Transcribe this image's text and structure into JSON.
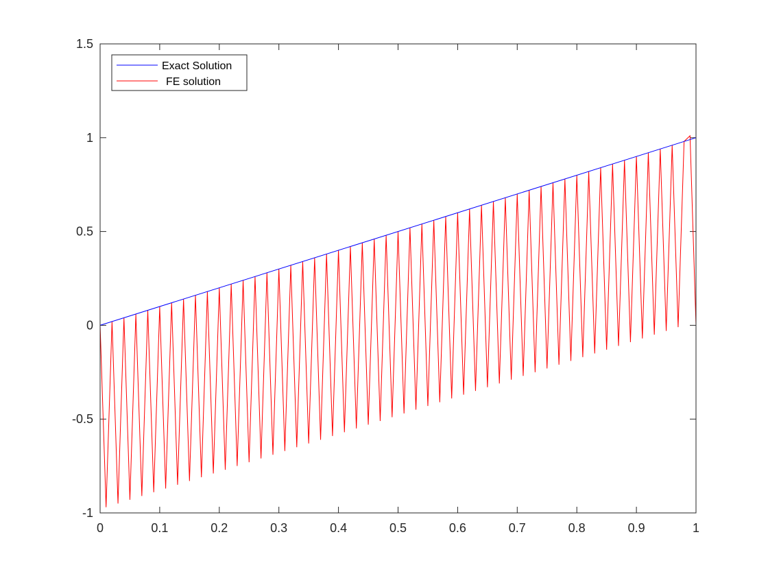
{
  "chart_data": {
    "type": "line",
    "title": "",
    "xlabel": "",
    "ylabel": "",
    "xlim": [
      0,
      1
    ],
    "ylim": [
      -1,
      1.5
    ],
    "xticks": [
      0,
      0.1,
      0.2,
      0.3,
      0.4,
      0.5,
      0.6,
      0.7,
      0.8,
      0.9,
      1
    ],
    "xtick_labels": [
      "0",
      "0.1",
      "0.2",
      "0.3",
      "0.4",
      "0.5",
      "0.6",
      "0.7",
      "0.8",
      "0.9",
      "1"
    ],
    "yticks": [
      -1,
      -0.5,
      0,
      0.5,
      1,
      1.5
    ],
    "ytick_labels": [
      "-1",
      "-0.5",
      "0",
      "0.5",
      "1",
      "1.5"
    ],
    "grid": false,
    "legend_position": "top-left",
    "series": [
      {
        "name": "Exact Solution",
        "color": "#0000ff",
        "x": [
          0,
          1
        ],
        "y": [
          0,
          1
        ]
      },
      {
        "name": "FE solution",
        "color": "#ff0000",
        "x": [
          0,
          0.01,
          0.02,
          0.03,
          0.04,
          0.05,
          0.06,
          0.07,
          0.08,
          0.09,
          0.1,
          0.11,
          0.12,
          0.13,
          0.14,
          0.15,
          0.16,
          0.17,
          0.18,
          0.19,
          0.2,
          0.21,
          0.22,
          0.23,
          0.24,
          0.25,
          0.26,
          0.27,
          0.28,
          0.29,
          0.3,
          0.31,
          0.32,
          0.33,
          0.34,
          0.35,
          0.36,
          0.37,
          0.38,
          0.39,
          0.4,
          0.41,
          0.42,
          0.43,
          0.44,
          0.45,
          0.46,
          0.47,
          0.48,
          0.49,
          0.5,
          0.51,
          0.52,
          0.53,
          0.54,
          0.55,
          0.56,
          0.57,
          0.58,
          0.59,
          0.6,
          0.61,
          0.62,
          0.63,
          0.64,
          0.65,
          0.66,
          0.67,
          0.68,
          0.69,
          0.7,
          0.71,
          0.72,
          0.73,
          0.74,
          0.75,
          0.76,
          0.77,
          0.78,
          0.79,
          0.8,
          0.81,
          0.82,
          0.83,
          0.84,
          0.85,
          0.86,
          0.87,
          0.88,
          0.89,
          0.9,
          0.91,
          0.92,
          0.93,
          0.94,
          0.95,
          0.96,
          0.97,
          0.98,
          0.99,
          1
        ],
        "y": [
          0,
          -0.97,
          0.02,
          -0.95,
          0.04,
          -0.93,
          0.06,
          -0.91,
          0.08,
          -0.89,
          0.1,
          -0.87,
          0.12,
          -0.85,
          0.14,
          -0.83,
          0.16,
          -0.81,
          0.18,
          -0.79,
          0.2,
          -0.77,
          0.22,
          -0.75,
          0.24,
          -0.73,
          0.26,
          -0.71,
          0.28,
          -0.69,
          0.3,
          -0.67,
          0.32,
          -0.65,
          0.34,
          -0.63,
          0.36,
          -0.61,
          0.38,
          -0.59,
          0.4,
          -0.57,
          0.42,
          -0.55,
          0.44,
          -0.53,
          0.46,
          -0.51,
          0.48,
          -0.49,
          0.5,
          -0.47,
          0.52,
          -0.45,
          0.54,
          -0.43,
          0.56,
          -0.41,
          0.58,
          -0.39,
          0.6,
          -0.37,
          0.62,
          -0.35,
          0.64,
          -0.33,
          0.66,
          -0.31,
          0.68,
          -0.29,
          0.7,
          -0.27,
          0.72,
          -0.25,
          0.74,
          -0.23,
          0.76,
          -0.21,
          0.78,
          -0.19,
          0.8,
          -0.17,
          0.82,
          -0.15,
          0.84,
          -0.13,
          0.86,
          -0.11,
          0.88,
          -0.09,
          0.9,
          -0.07,
          0.92,
          -0.05,
          0.94,
          -0.03,
          0.96,
          -0.01,
          0.98,
          1.01,
          0
        ]
      }
    ]
  }
}
